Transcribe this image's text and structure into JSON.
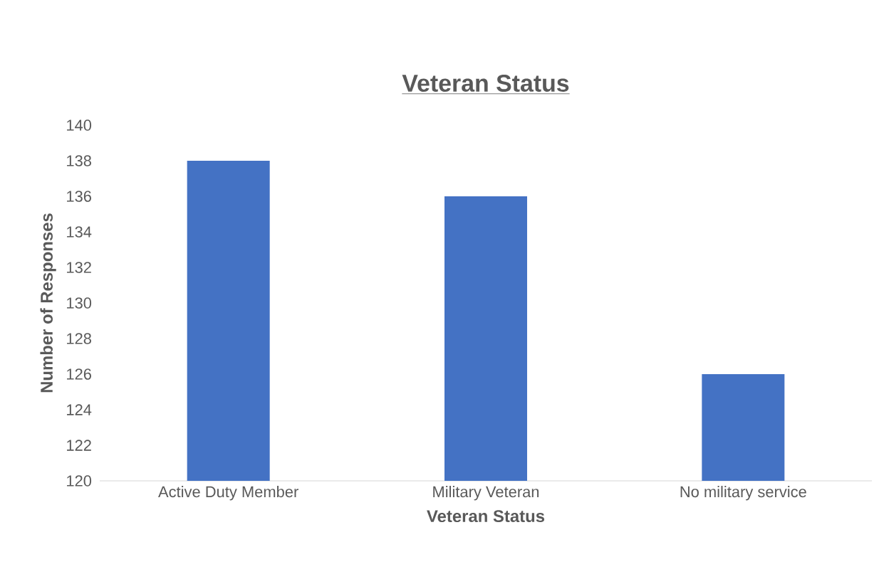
{
  "chart_data": {
    "type": "bar",
    "title": "Veteran Status",
    "xlabel": "Veteran Status",
    "ylabel": "Number of Responses",
    "categories": [
      "Active Duty Member",
      "Military Veteran",
      "No military service"
    ],
    "values": [
      138,
      136,
      126
    ],
    "color": "#4472c4",
    "ylim": [
      120,
      140
    ],
    "yticks": [
      120,
      122,
      124,
      126,
      128,
      130,
      132,
      134,
      136,
      138,
      140
    ]
  }
}
